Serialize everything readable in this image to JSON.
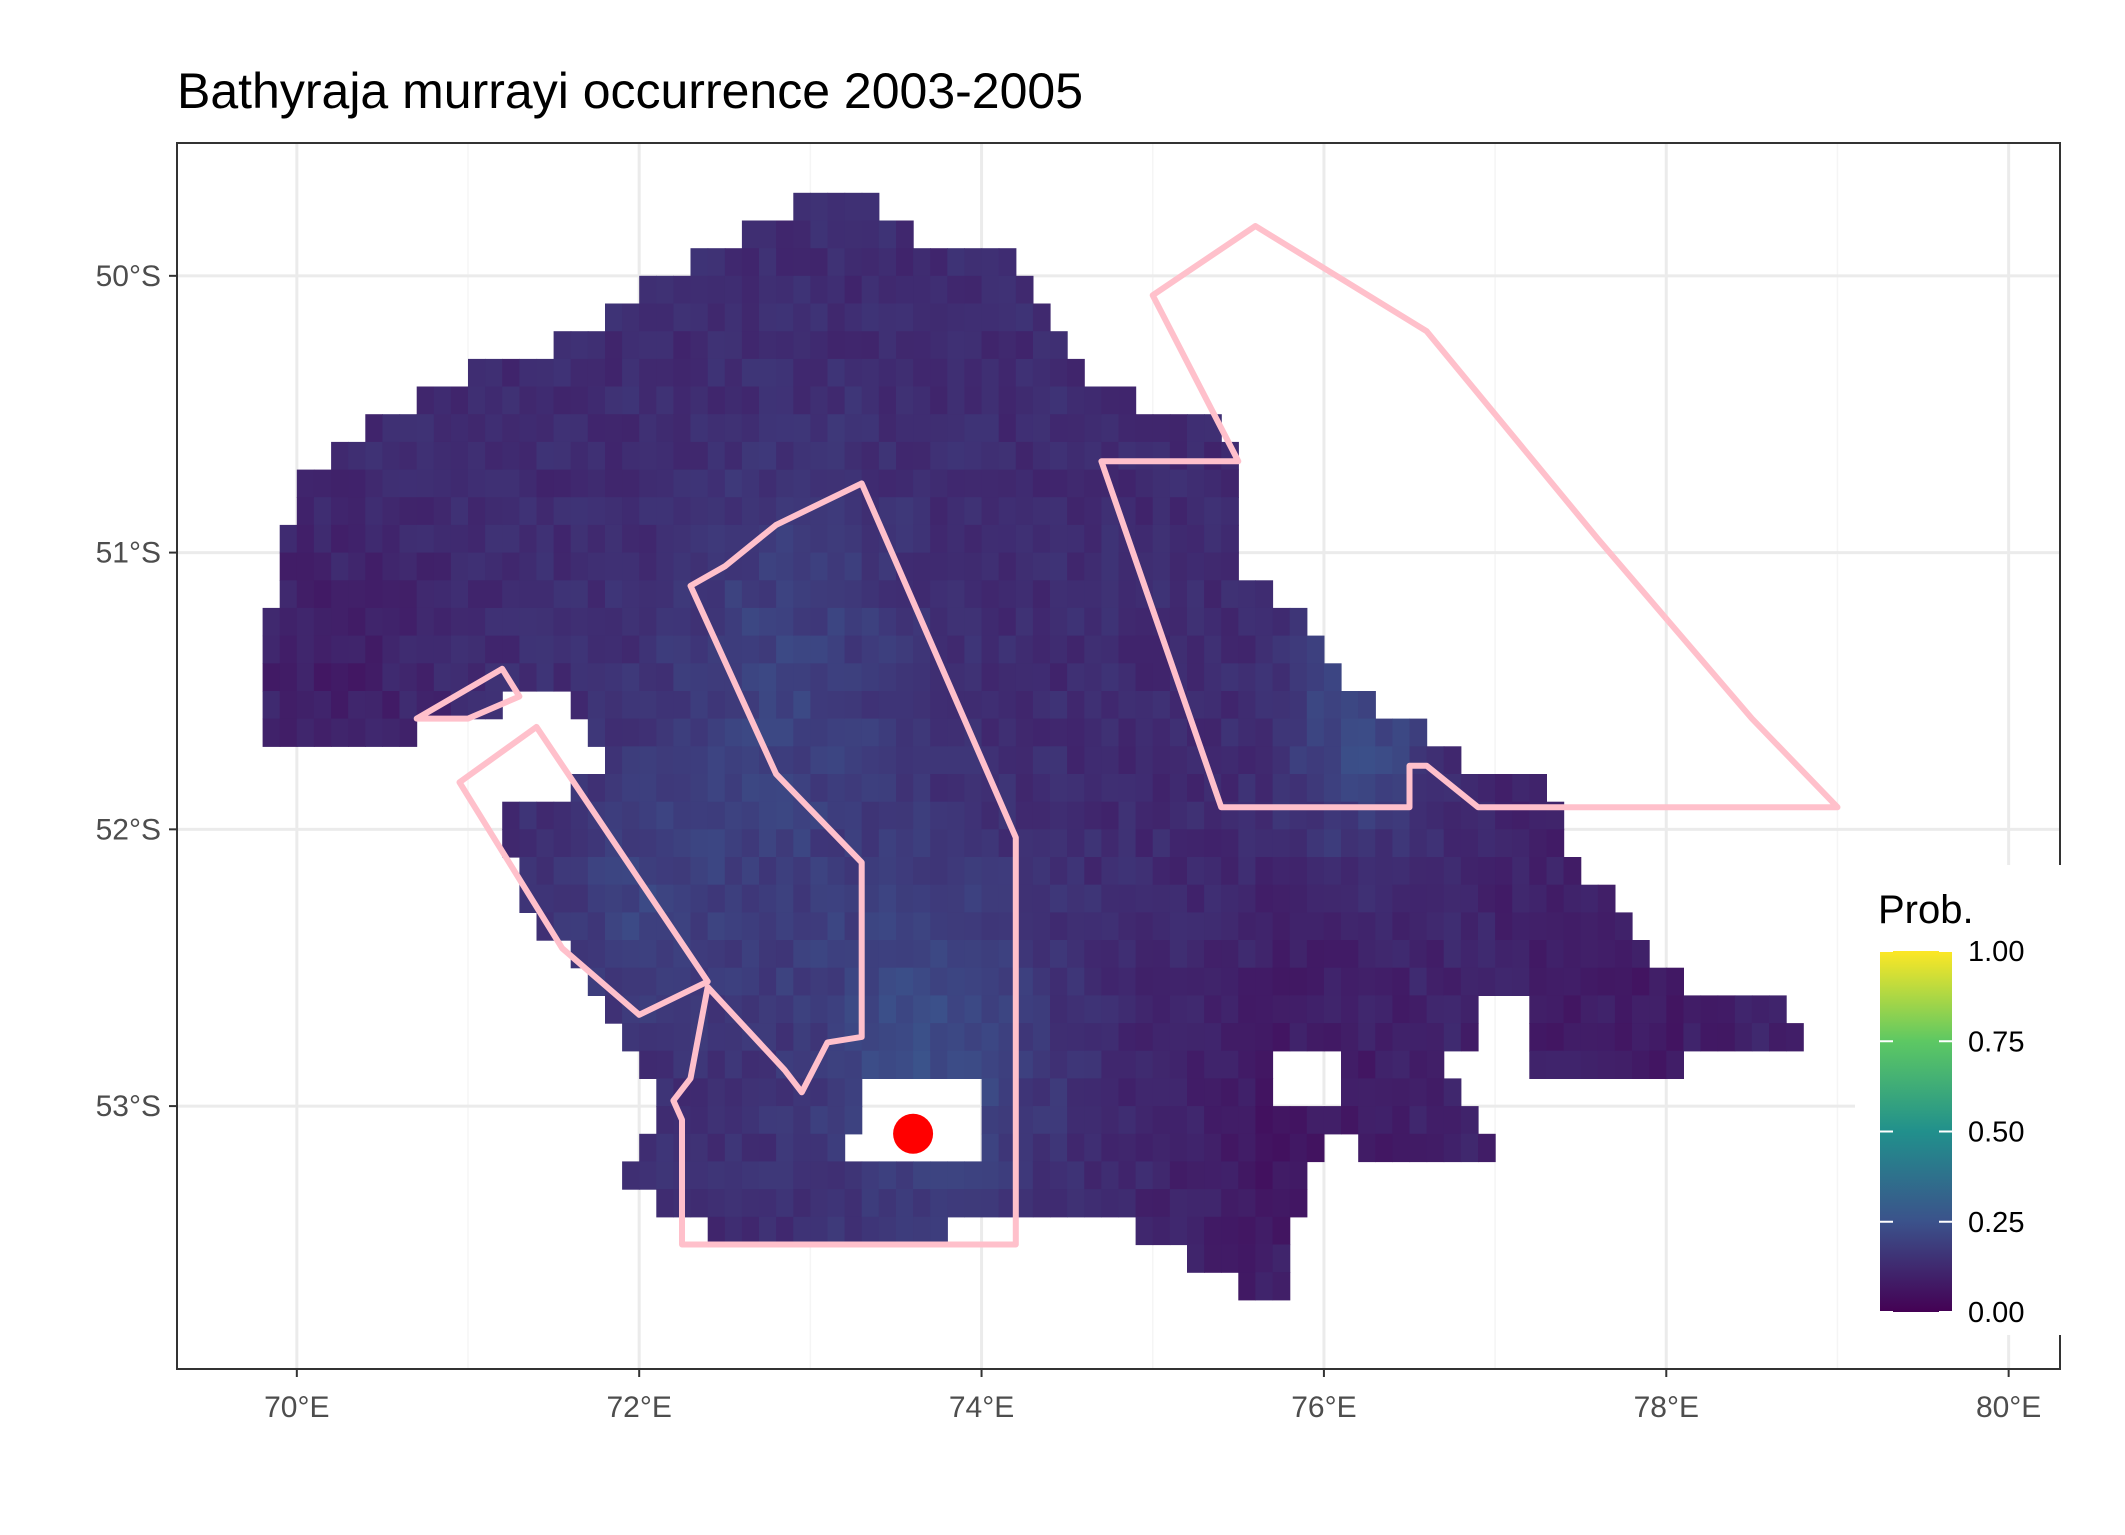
{
  "title": "Bathyraja murrayi  occurrence 2003-2005",
  "x_axis": {
    "ticks": [
      {
        "value": 70,
        "label": "70°E"
      },
      {
        "value": 72,
        "label": "72°E"
      },
      {
        "value": 74,
        "label": "74°E"
      },
      {
        "value": 76,
        "label": "76°E"
      },
      {
        "value": 78,
        "label": "78°E"
      },
      {
        "value": 80,
        "label": "80°E"
      }
    ],
    "range": [
      69.3,
      80.3
    ]
  },
  "y_axis": {
    "ticks": [
      {
        "value": -50,
        "label": "50°S"
      },
      {
        "value": -51,
        "label": "51°S"
      },
      {
        "value": -52,
        "label": "52°S"
      },
      {
        "value": -53,
        "label": "53°S"
      }
    ],
    "range": [
      -53.95,
      -49.52
    ]
  },
  "legend": {
    "title": "Prob.",
    "placement": "right",
    "ticks": [
      {
        "value": 1.0,
        "label": "1.00"
      },
      {
        "value": 0.75,
        "label": "0.75"
      },
      {
        "value": 0.5,
        "label": "0.50"
      },
      {
        "value": 0.25,
        "label": "0.25"
      },
      {
        "value": 0.0,
        "label": "0.00"
      }
    ],
    "colors": [
      "#440154",
      "#3b528b",
      "#21908c",
      "#5dc863",
      "#fde725"
    ]
  },
  "colors": {
    "outline": "#ffc0cb",
    "marker": "#ff0000",
    "grid": "#ebebeb",
    "panel_border": "#333333",
    "no_data": "#ffffff"
  },
  "chart_data": {
    "type": "heatmap",
    "grid_on": true,
    "cell_size_deg": {
      "lon": 0.1,
      "lat": 0.1
    },
    "region_outlines": [
      {
        "points": [
          [
            75.0,
            -50.07
          ],
          [
            75.6,
            -49.82
          ],
          [
            76.6,
            -50.2
          ],
          [
            77.6,
            -50.95
          ],
          [
            78.5,
            -51.6
          ],
          [
            79.0,
            -51.92
          ],
          [
            76.9,
            -51.92
          ],
          [
            76.6,
            -51.77
          ],
          [
            76.5,
            -51.77
          ],
          [
            76.5,
            -51.92
          ],
          [
            75.4,
            -51.92
          ],
          [
            74.7,
            -50.67
          ],
          [
            75.5,
            -50.67
          ]
        ]
      },
      {
        "points": [
          [
            73.3,
            -50.75
          ],
          [
            72.8,
            -50.9
          ],
          [
            72.5,
            -51.05
          ],
          [
            72.3,
            -51.12
          ],
          [
            72.8,
            -51.8
          ],
          [
            73.3,
            -52.12
          ],
          [
            73.3,
            -52.75
          ],
          [
            73.1,
            -52.77
          ],
          [
            72.95,
            -52.95
          ],
          [
            72.85,
            -52.87
          ],
          [
            72.4,
            -52.57
          ],
          [
            72.3,
            -52.9
          ],
          [
            72.2,
            -52.98
          ],
          [
            72.25,
            -53.05
          ],
          [
            72.25,
            -53.5
          ],
          [
            74.2,
            -53.5
          ],
          [
            74.2,
            -52.03
          ]
        ]
      },
      {
        "points": [
          [
            71.4,
            -51.63
          ],
          [
            72.4,
            -52.55
          ],
          [
            72.0,
            -52.67
          ],
          [
            71.55,
            -52.43
          ],
          [
            70.95,
            -51.83
          ]
        ]
      },
      {
        "points": [
          [
            70.7,
            -51.6
          ],
          [
            71.2,
            -51.42
          ],
          [
            71.3,
            -51.52
          ],
          [
            71.0,
            -51.6
          ]
        ]
      }
    ],
    "occurrences": [
      {
        "lon": 73.6,
        "lat": -53.1
      }
    ]
  }
}
